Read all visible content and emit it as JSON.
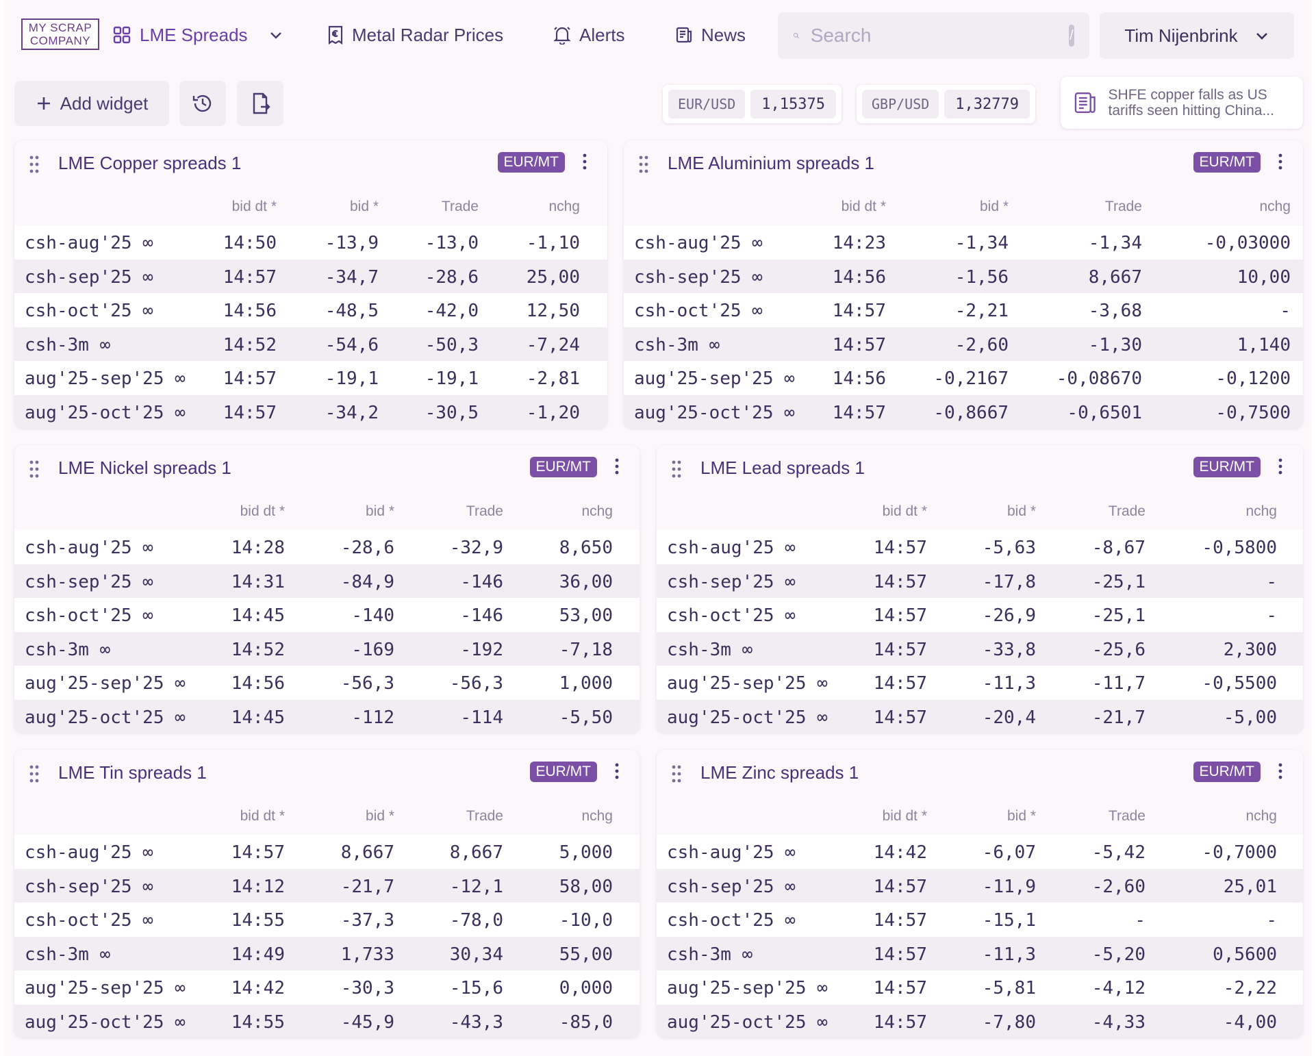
{
  "brand": {
    "logo_line1": "MY SCRAP",
    "logo_line2": "COMPANY"
  },
  "nav": {
    "workspace_label": "LME Spreads",
    "metal_radar_label": "Metal Radar Prices",
    "alerts_label": "Alerts",
    "news_label": "News",
    "search_placeholder": "Search",
    "search_shortcut": "/",
    "user_name": "Tim Nijenbrink"
  },
  "toolbar": {
    "add_widget_label": "Add widget",
    "fx": [
      {
        "pair": "EUR/USD",
        "rate": "1,15375"
      },
      {
        "pair": "GBP/USD",
        "rate": "1,32779"
      }
    ],
    "news_line1": "SHFE copper falls as US",
    "news_line2": "tariffs seen hitting China..."
  },
  "columns": [
    "bid dt *",
    "bid *",
    "Trade",
    "nchg"
  ],
  "widgets": [
    {
      "title": "LME Copper spreads 1",
      "unit": "EUR/MT",
      "rows": [
        [
          "csh-aug'25 ∞",
          "14:50",
          "-13,9",
          "-13,0",
          "-1,10"
        ],
        [
          "csh-sep'25 ∞",
          "14:57",
          "-34,7",
          "-28,6",
          "25,00"
        ],
        [
          "csh-oct'25 ∞",
          "14:56",
          "-48,5",
          "-42,0",
          "12,50"
        ],
        [
          "csh-3m ∞",
          "14:52",
          "-54,6",
          "-50,3",
          "-7,24"
        ],
        [
          "aug'25-sep'25 ∞",
          "14:57",
          "-19,1",
          "-19,1",
          "-2,81"
        ],
        [
          "aug'25-oct'25 ∞",
          "14:57",
          "-34,2",
          "-30,5",
          "-1,20"
        ]
      ]
    },
    {
      "title": "LME Aluminium spreads 1",
      "unit": "EUR/MT",
      "rows": [
        [
          "csh-aug'25 ∞",
          "14:23",
          "-1,34",
          "-1,34",
          "-0,03000"
        ],
        [
          "csh-sep'25 ∞",
          "14:56",
          "-1,56",
          "8,667",
          "10,00"
        ],
        [
          "csh-oct'25 ∞",
          "14:57",
          "-2,21",
          "-3,68",
          "-"
        ],
        [
          "csh-3m ∞",
          "14:57",
          "-2,60",
          "-1,30",
          "1,140"
        ],
        [
          "aug'25-sep'25 ∞",
          "14:56",
          "-0,2167",
          "-0,08670",
          "-0,1200"
        ],
        [
          "aug'25-oct'25 ∞",
          "14:57",
          "-0,8667",
          "-0,6501",
          "-0,7500"
        ]
      ]
    },
    {
      "title": "LME Nickel spreads 1",
      "unit": "EUR/MT",
      "rows": [
        [
          "csh-aug'25 ∞",
          "14:28",
          "-28,6",
          "-32,9",
          "8,650"
        ],
        [
          "csh-sep'25 ∞",
          "14:31",
          "-84,9",
          "-146",
          "36,00"
        ],
        [
          "csh-oct'25 ∞",
          "14:45",
          "-140",
          "-146",
          "53,00"
        ],
        [
          "csh-3m ∞",
          "14:52",
          "-169",
          "-192",
          "-7,18"
        ],
        [
          "aug'25-sep'25 ∞",
          "14:56",
          "-56,3",
          "-56,3",
          "1,000"
        ],
        [
          "aug'25-oct'25 ∞",
          "14:45",
          "-112",
          "-114",
          "-5,50"
        ]
      ]
    },
    {
      "title": "LME Lead spreads 1",
      "unit": "EUR/MT",
      "rows": [
        [
          "csh-aug'25 ∞",
          "14:57",
          "-5,63",
          "-8,67",
          "-0,5800"
        ],
        [
          "csh-sep'25 ∞",
          "14:57",
          "-17,8",
          "-25,1",
          "-"
        ],
        [
          "csh-oct'25 ∞",
          "14:57",
          "-26,9",
          "-25,1",
          "-"
        ],
        [
          "csh-3m ∞",
          "14:57",
          "-33,8",
          "-25,6",
          "2,300"
        ],
        [
          "aug'25-sep'25 ∞",
          "14:57",
          "-11,3",
          "-11,7",
          "-0,5500"
        ],
        [
          "aug'25-oct'25 ∞",
          "14:57",
          "-20,4",
          "-21,7",
          "-5,00"
        ]
      ]
    },
    {
      "title": "LME Tin spreads 1",
      "unit": "EUR/MT",
      "rows": [
        [
          "csh-aug'25 ∞",
          "14:57",
          "8,667",
          "8,667",
          "5,000"
        ],
        [
          "csh-sep'25 ∞",
          "14:12",
          "-21,7",
          "-12,1",
          "58,00"
        ],
        [
          "csh-oct'25 ∞",
          "14:55",
          "-37,3",
          "-78,0",
          "-10,0"
        ],
        [
          "csh-3m ∞",
          "14:49",
          "1,733",
          "30,34",
          "55,00"
        ],
        [
          "aug'25-sep'25 ∞",
          "14:42",
          "-30,3",
          "-15,6",
          "0,000"
        ],
        [
          "aug'25-oct'25 ∞",
          "14:55",
          "-45,9",
          "-43,3",
          "-85,0"
        ]
      ]
    },
    {
      "title": "LME Zinc spreads 1",
      "unit": "EUR/MT",
      "rows": [
        [
          "csh-aug'25 ∞",
          "14:42",
          "-6,07",
          "-5,42",
          "-0,7000"
        ],
        [
          "csh-sep'25 ∞",
          "14:57",
          "-11,9",
          "-2,60",
          "25,01"
        ],
        [
          "csh-oct'25 ∞",
          "14:57",
          "-15,1",
          "-",
          "-"
        ],
        [
          "csh-3m ∞",
          "14:57",
          "-11,3",
          "-5,20",
          "0,5600"
        ],
        [
          "aug'25-sep'25 ∞",
          "14:57",
          "-5,81",
          "-4,12",
          "-2,22"
        ],
        [
          "aug'25-oct'25 ∞",
          "14:57",
          "-7,80",
          "-4,33",
          "-4,00"
        ]
      ]
    }
  ]
}
